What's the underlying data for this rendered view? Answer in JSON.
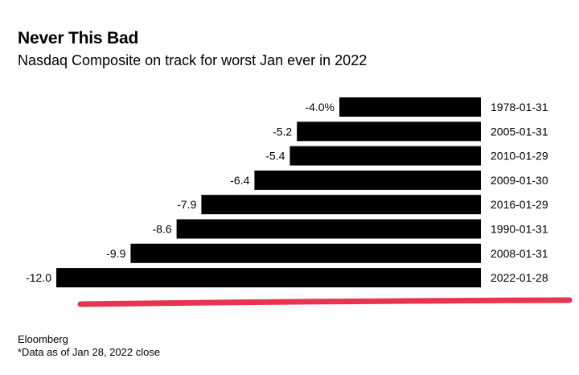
{
  "header": {
    "title": "Never This Bad",
    "subtitle": "Nasdaq Composite on track for worst Jan ever in 2022"
  },
  "chart_data": {
    "type": "bar",
    "orientation": "horizontal",
    "title": "Never This Bad",
    "subtitle": "Nasdaq Composite on track for worst Jan ever in 2022",
    "categories": [
      "1978-01-31",
      "2005-01-31",
      "2010-01-29",
      "2009-01-30",
      "2016-01-29",
      "1990-01-31",
      "2008-01-31",
      "2022-01-28"
    ],
    "values": [
      -4.0,
      -5.2,
      -5.4,
      -6.4,
      -7.9,
      -8.6,
      -9.9,
      -12.0
    ],
    "value_labels": [
      "-4.0%",
      "-5.2",
      "-5.4",
      "-6.4",
      "-7.9",
      "-8.6",
      "-9.9",
      "-12.0"
    ],
    "unit": "%",
    "xlim": [
      -12.0,
      0
    ],
    "xlabel": "",
    "ylabel": "",
    "grid": false,
    "legend": "none",
    "bar_color": "#000000",
    "highlight_color": "#e8344e",
    "highlighted_category": "2022-01-28"
  },
  "footer": {
    "source": "Eloomberg",
    "note": "*Data as of Jan 28, 2022 close"
  }
}
